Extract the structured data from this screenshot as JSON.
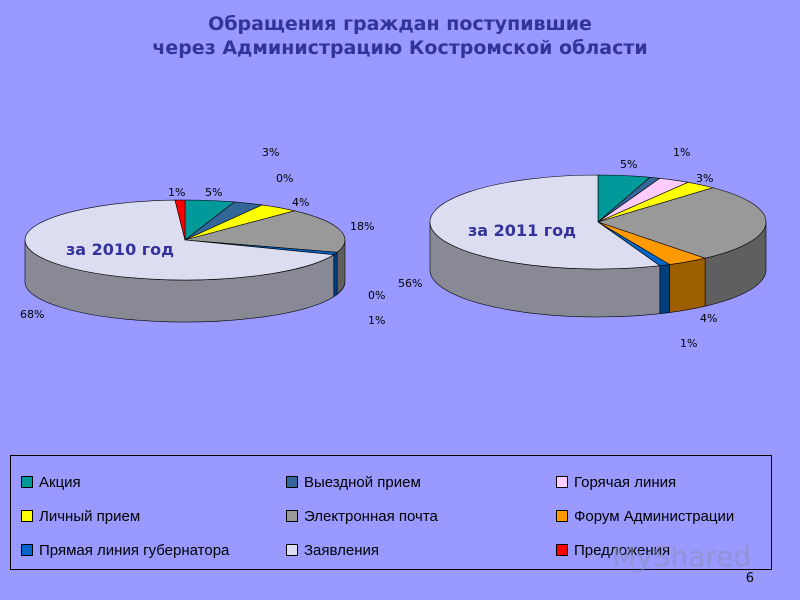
{
  "title": {
    "line1": "Обращения граждан поступившие",
    "line2": "через Администрацию Костромской области"
  },
  "chart_data": [
    {
      "type": "pie",
      "year_label": "за 2010 год",
      "series": [
        {
          "category": "Акция",
          "value": 5,
          "label": "5%"
        },
        {
          "category": "Выездной прием",
          "value": 3,
          "label": "3%"
        },
        {
          "category": "Горячая линия",
          "value": 0,
          "label": "0%"
        },
        {
          "category": "Личный прием",
          "value": 4,
          "label": "4%"
        },
        {
          "category": "Электронная почта",
          "value": 18,
          "label": "18%"
        },
        {
          "category": "Форум Администрации",
          "value": 0,
          "label": "0%"
        },
        {
          "category": "Прямая линия губернатора",
          "value": 1,
          "label": "1%"
        },
        {
          "category": "Заявления",
          "value": 68,
          "label": "68%"
        },
        {
          "category": "Предложения",
          "value": 1,
          "label": "1%"
        }
      ]
    },
    {
      "type": "pie",
      "year_label": "за 2011 год",
      "series": [
        {
          "category": "Акция",
          "value": 5,
          "label": "5%"
        },
        {
          "category": "Выездной прием",
          "value": 1,
          "label": "1%"
        },
        {
          "category": "Горячая линия",
          "value": 3,
          "label": "3%"
        },
        {
          "category": "Личный прием",
          "value": 3,
          "label": ""
        },
        {
          "category": "Электронная почта",
          "value": 27,
          "label": ""
        },
        {
          "category": "Форум Администрации",
          "value": 4,
          "label": "4%"
        },
        {
          "category": "Прямая линия губернатора",
          "value": 1,
          "label": "1%"
        },
        {
          "category": "Заявления",
          "value": 56,
          "label": "56%"
        },
        {
          "category": "Предложения",
          "value": 0,
          "label": ""
        }
      ]
    }
  ],
  "legend": [
    {
      "label": "Акция",
      "color": "#009999"
    },
    {
      "label": "Выездной прием",
      "color": "#336699"
    },
    {
      "label": "Горячая линия",
      "color": "#ffccff"
    },
    {
      "label": "Личный прием",
      "color": "#ffff00"
    },
    {
      "label": "Электронная почта",
      "color": "#999999"
    },
    {
      "label": "Форум Администрации",
      "color": "#ff9900"
    },
    {
      "label": "Прямая линия губернатора",
      "color": "#0066cc"
    },
    {
      "label": "Заявления",
      "color": "#ddddf2"
    },
    {
      "label": "Предложения",
      "color": "#ff0000"
    }
  ],
  "watermark": "MyShared",
  "page_number": "6"
}
